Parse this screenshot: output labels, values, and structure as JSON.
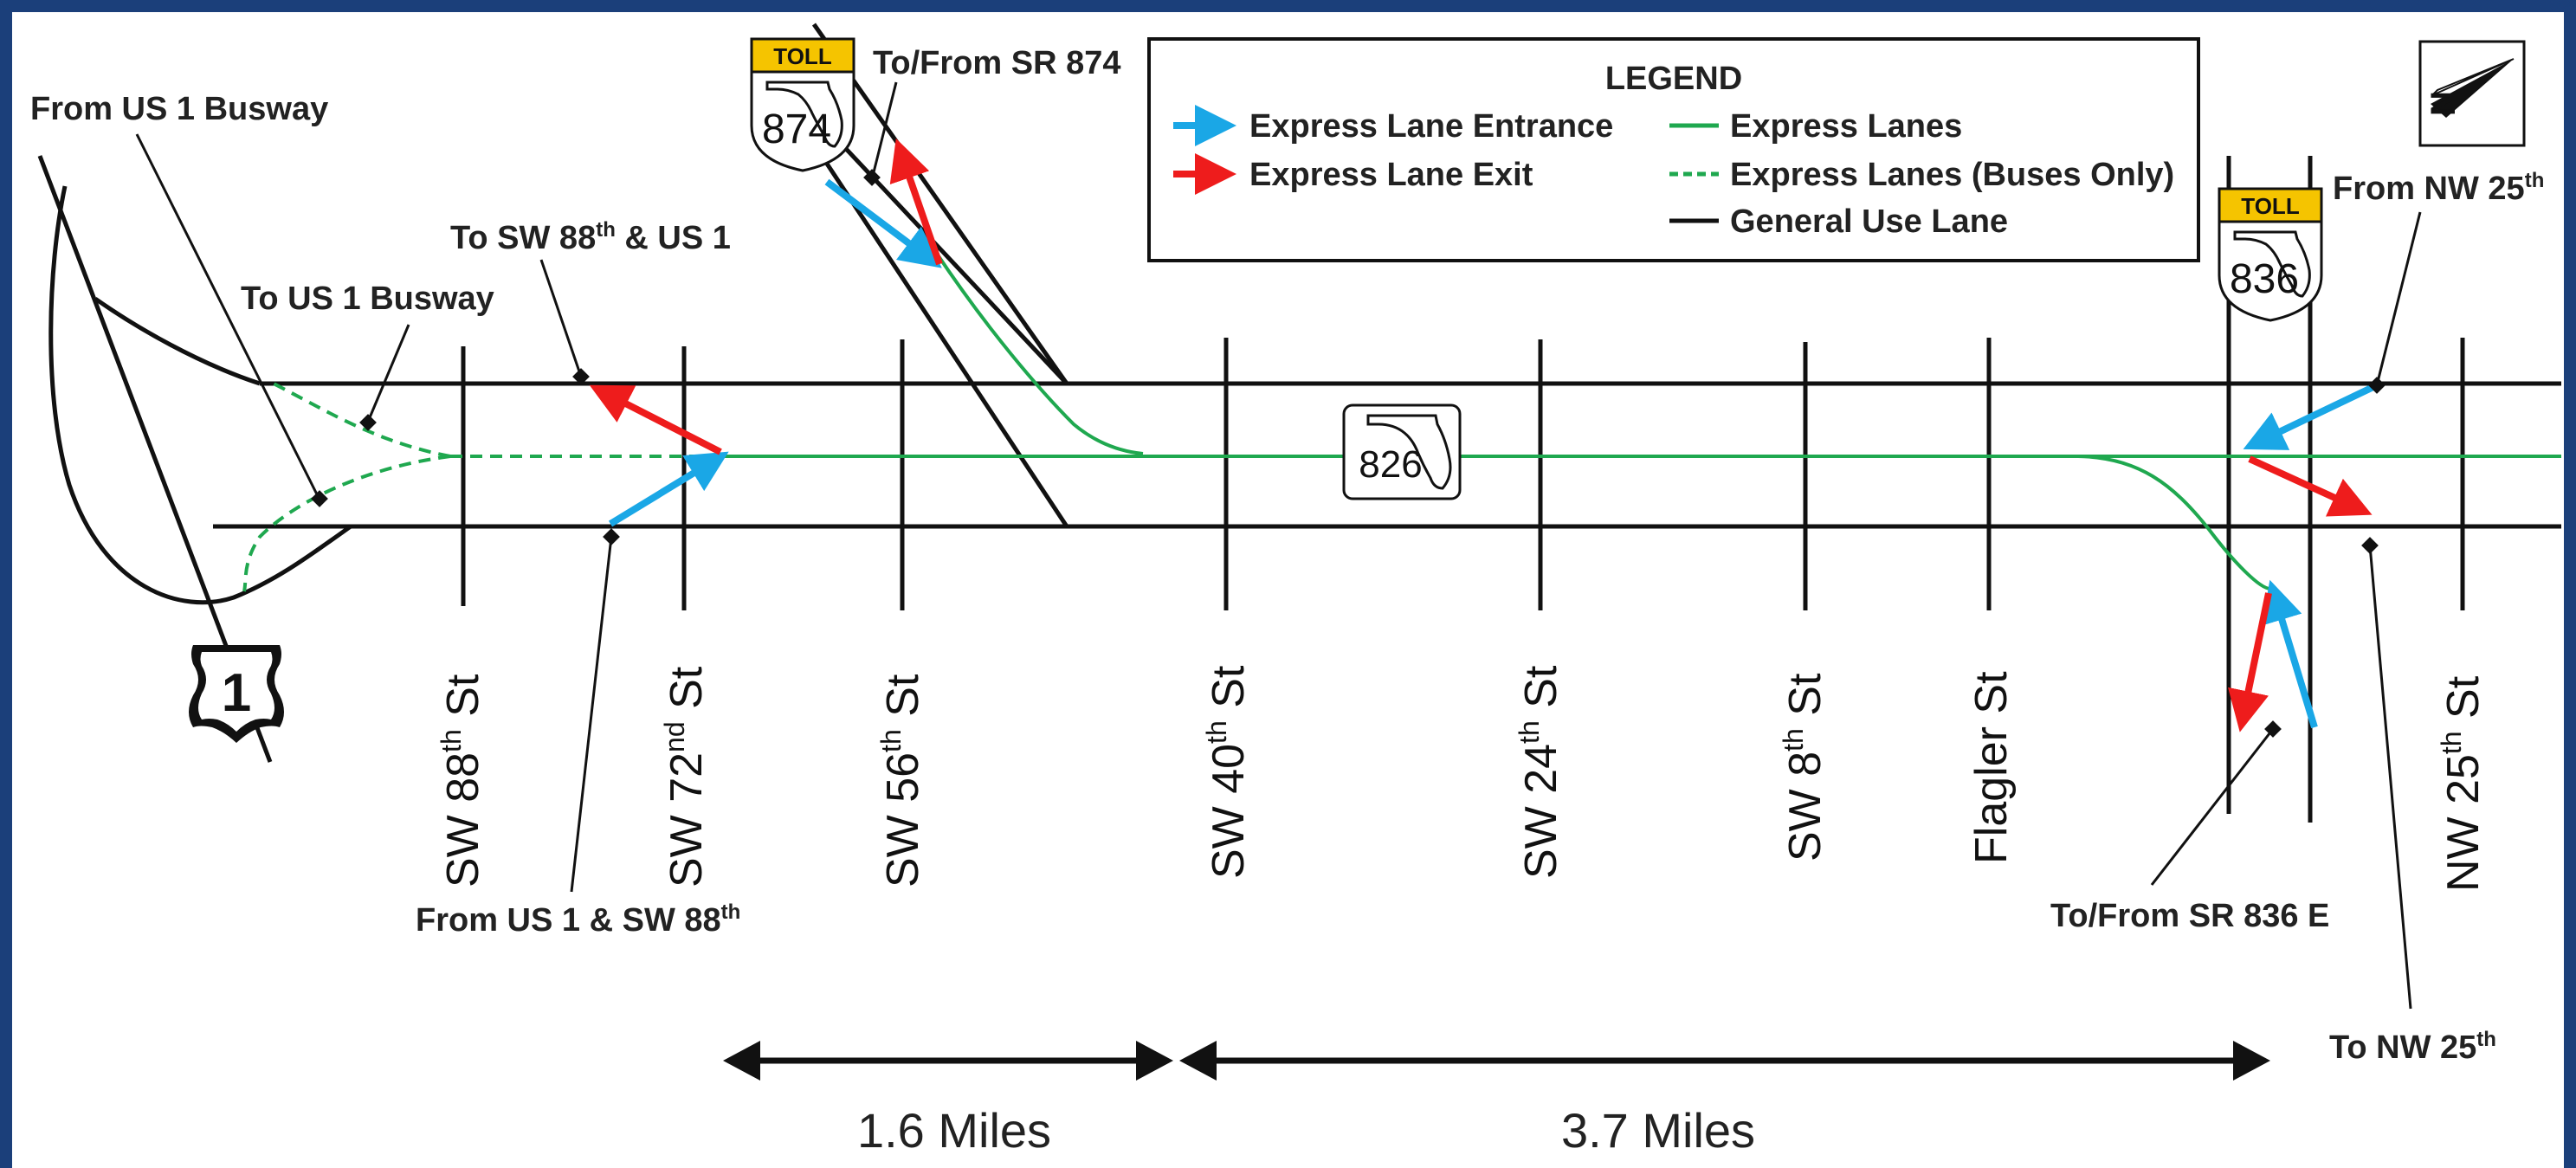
{
  "legend": {
    "title": "LEGEND",
    "items": [
      {
        "label": "Express Lane Entrance",
        "symbol": "blue-arrow-icon",
        "color": "#1aa7e6"
      },
      {
        "label": "Express Lane Exit",
        "symbol": "red-arrow-icon",
        "color": "#ee1c1c"
      },
      {
        "label": "Express Lanes",
        "symbol": "green-solid-line",
        "color": "#1fa84f"
      },
      {
        "label": "Express Lanes (Buses Only)",
        "symbol": "green-dashed-line",
        "color": "#1fa84f"
      },
      {
        "label": "General Use Lane",
        "symbol": "black-solid-line",
        "color": "#111111"
      }
    ]
  },
  "shields": {
    "us1": "1",
    "sr826": "826",
    "sr874": "874",
    "sr836": "836",
    "toll": "TOLL"
  },
  "callouts": {
    "from_us1_busway": "From US 1 Busway",
    "to_us1_busway": "To US 1 Busway",
    "to_sw88_us1_pre": "To SW 88",
    "to_sw88_us1_sup": "th",
    "to_sw88_us1_post": " & US 1",
    "from_us1_sw88_pre": "From US 1 & SW 88",
    "from_us1_sw88_sup": "th",
    "to_from_sr874": "To/From SR 874",
    "from_nw25_pre": "From NW 25",
    "from_nw25_sup": "th",
    "to_from_sr836e": "To/From SR 836 E",
    "to_nw25_pre": "To NW 25",
    "to_nw25_sup": "th"
  },
  "streets": [
    {
      "pre": "SW 88",
      "sup": "th",
      "post": " St"
    },
    {
      "pre": "SW 72",
      "sup": "nd",
      "post": " St"
    },
    {
      "pre": "SW 56",
      "sup": "th",
      "post": " St"
    },
    {
      "pre": "SW 40",
      "sup": "th",
      "post": " St"
    },
    {
      "pre": "SW 24",
      "sup": "th",
      "post": " St"
    },
    {
      "pre": "SW 8",
      "sup": "th",
      "post": " St"
    },
    {
      "pre": "Flagler St",
      "sup": "",
      "post": ""
    },
    {
      "pre": "NW 25",
      "sup": "th",
      "post": " St"
    }
  ],
  "distances": {
    "segment_a": "1.6 Miles",
    "segment_b": "3.7 Miles"
  },
  "colors": {
    "border": "#1b3f7a",
    "express": "#1fa84f",
    "entrance": "#1aa7e6",
    "exit": "#ee1c1c",
    "road": "#111111",
    "toll": "#f5c400"
  },
  "north_arrow": "north-arrow-icon"
}
